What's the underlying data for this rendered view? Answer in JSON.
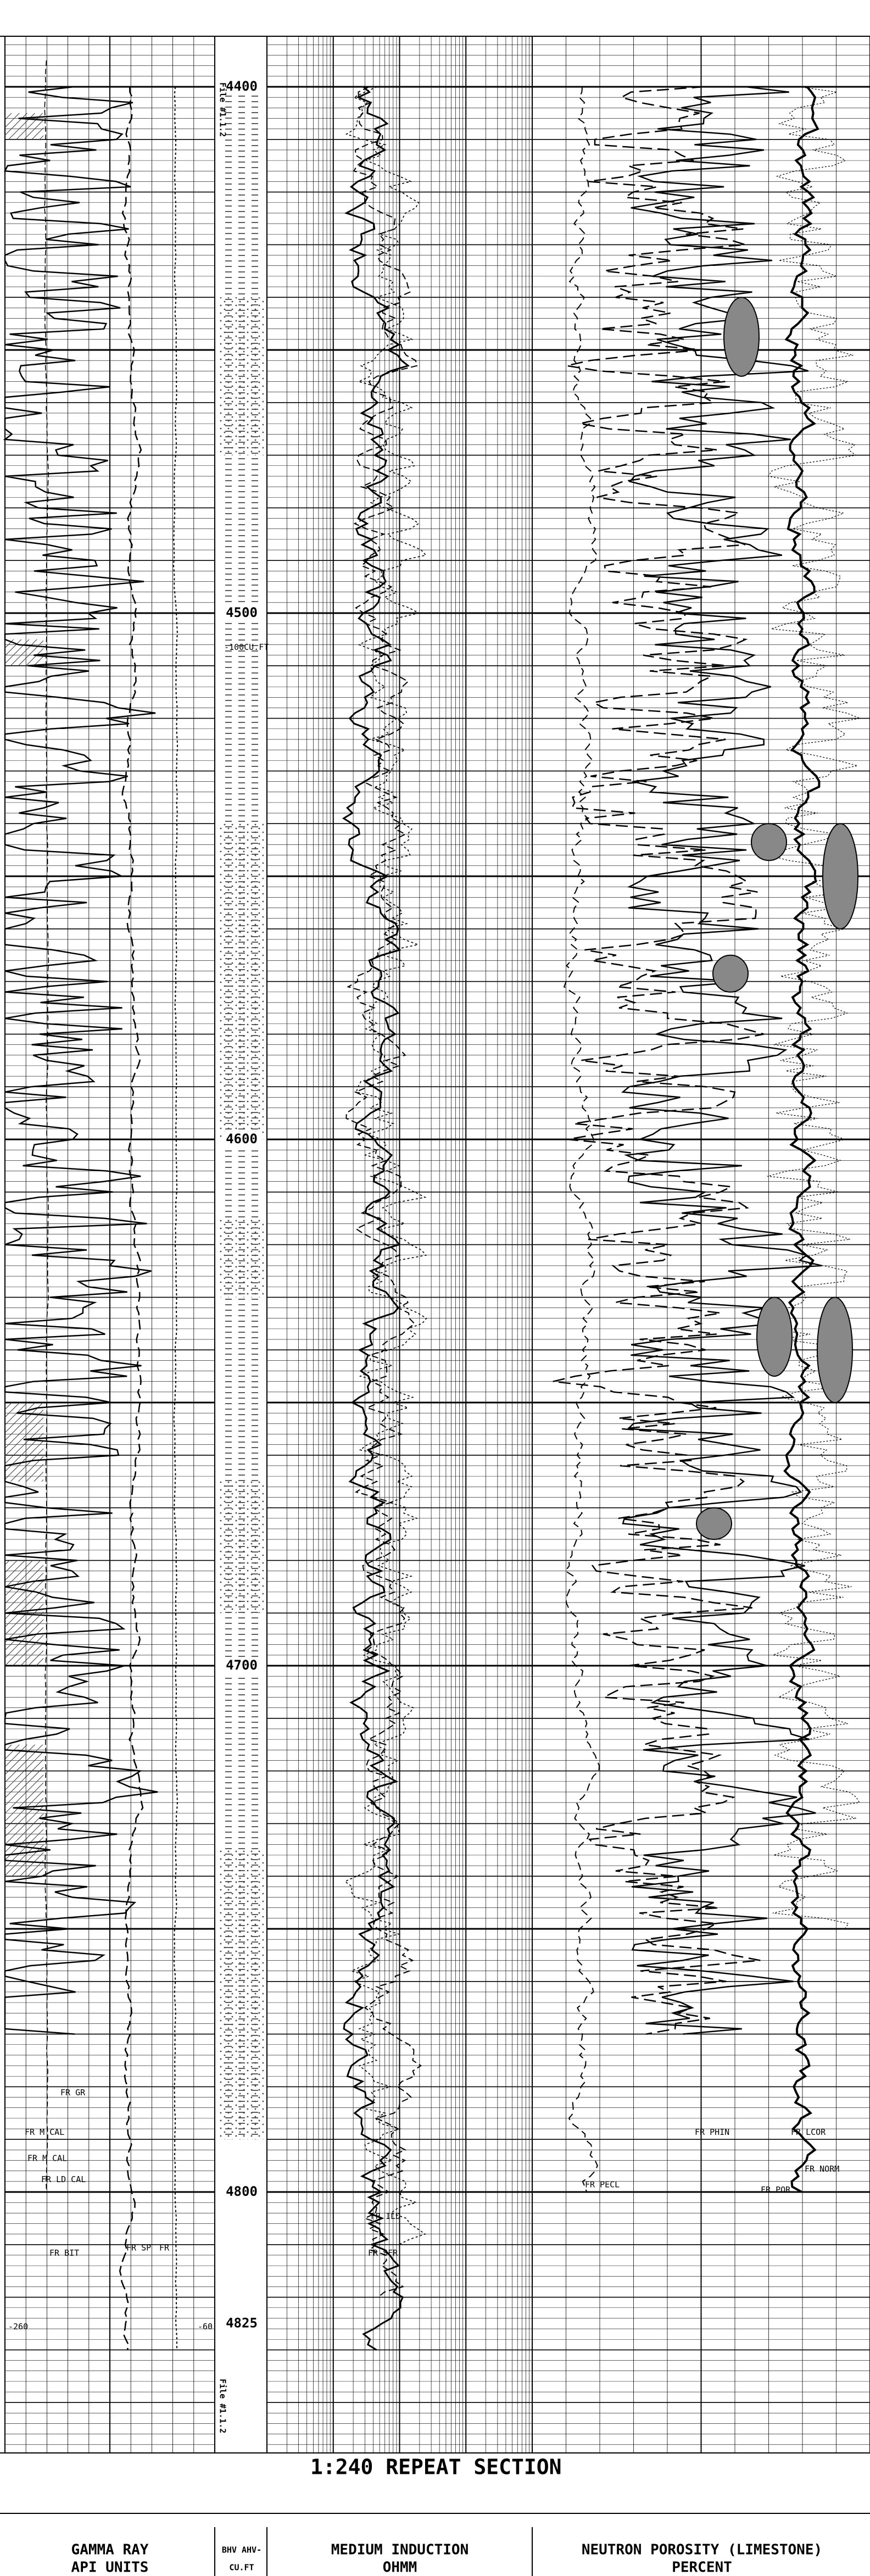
{
  "depth_labels": [
    "4400",
    "4500",
    "4600",
    "4700",
    "4800",
    "4825"
  ],
  "file_labels": [
    "File #1.1.2",
    "File #1.1.2"
  ],
  "title": "1:240 REPEAT SECTION",
  "curve_labels": {
    "gr": "FR GR",
    "m_cal": "FR M CAL",
    "ld_cal": "FR LD CAL",
    "m_cal2": "FR M CAL",
    "bit": "FR BIT",
    "sp": "FR SP",
    "fr": "FR",
    "ild": "FR ILD",
    "sfr": "FR SFR",
    "pecl": "FR PECL",
    "phin": "FR PHIN",
    "por": "FR POR",
    "lcor": "FR LCOR",
    "norm": "FR NORM"
  },
  "scale_notes": {
    "bhv": "-100CU.FT",
    "left": "-260",
    "right": "-60"
  },
  "footer": [
    {
      "line1": "GAMMA RAY",
      "line2": "API UNITS"
    },
    {
      "line1": "BHV AHV-",
      "line2": "CU.FT"
    },
    {
      "line1": "MEDIUM INDUCTION",
      "line2": "OHMM"
    },
    {
      "line1": "NEUTRON POROSITY (LIMESTONE)",
      "line2": "PERCENT"
    }
  ]
}
